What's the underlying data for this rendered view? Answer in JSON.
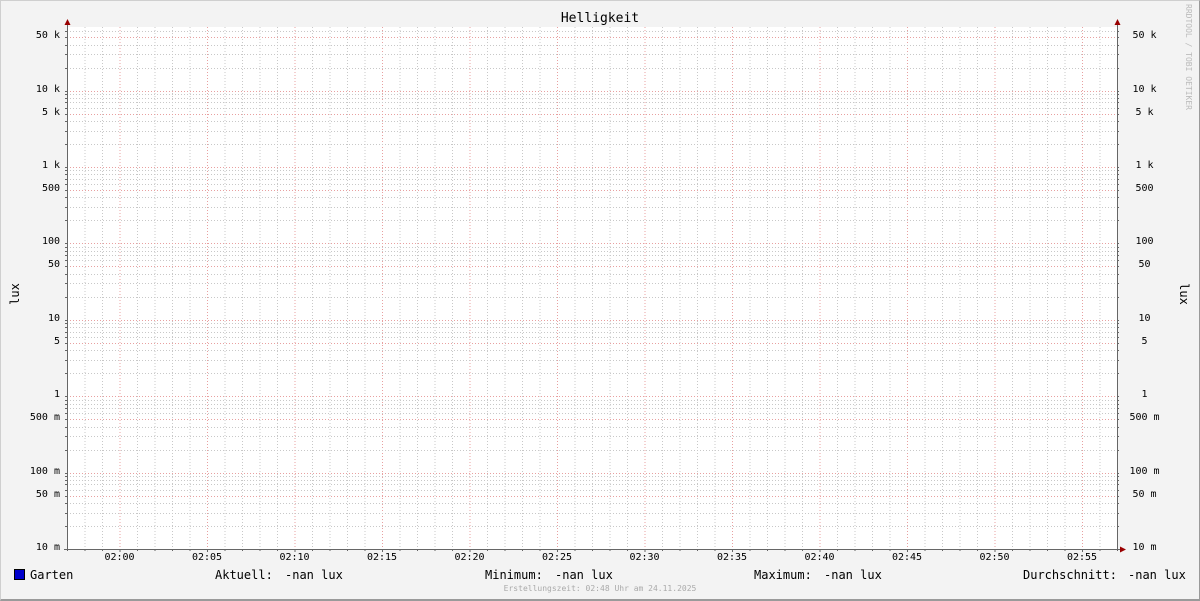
{
  "chart_data": {
    "type": "line",
    "title": "Helligkeit",
    "ylabel_left": "lux",
    "ylabel_right": "lux",
    "y_scale": "log",
    "ylim": [
      0.01,
      68000
    ],
    "xlim": [
      "01:57",
      "02:57"
    ],
    "x_ticks": [
      "02:00",
      "02:05",
      "02:10",
      "02:15",
      "02:20",
      "02:25",
      "02:30",
      "02:35",
      "02:40",
      "02:45",
      "02:50",
      "02:55"
    ],
    "y_ticks": [
      {
        "value": 50000,
        "label": "50 k"
      },
      {
        "value": 10000,
        "label": "10 k"
      },
      {
        "value": 5000,
        "label": "5 k"
      },
      {
        "value": 1000,
        "label": "1 k"
      },
      {
        "value": 500,
        "label": "500"
      },
      {
        "value": 100,
        "label": "100"
      },
      {
        "value": 50,
        "label": "50"
      },
      {
        "value": 10,
        "label": "10"
      },
      {
        "value": 5,
        "label": "5"
      },
      {
        "value": 1,
        "label": "1"
      },
      {
        "value": 0.5,
        "label": "500 m"
      },
      {
        "value": 0.1,
        "label": "100 m"
      },
      {
        "value": 0.05,
        "label": "50 m"
      },
      {
        "value": 0.01,
        "label": "10 m"
      }
    ],
    "grid": true,
    "series": [
      {
        "name": "Garten",
        "color": "#0000cc",
        "values": []
      }
    ],
    "legend_placement": "bottom"
  },
  "legend": {
    "series_name": "Garten",
    "aktuell_label": "Aktuell:",
    "aktuell_value": "-nan lux",
    "minimum_label": "Minimum:",
    "minimum_value": "-nan lux",
    "maximum_label": "Maximum:",
    "maximum_value": "-nan lux",
    "avg_label": "Durchschnitt:",
    "avg_value": "-nan lux"
  },
  "footer": "Erstellungszeit: 02:48 Uhr am 24.11.2025",
  "watermark": "RRDTOOL / TOBI OETIKER",
  "colors": {
    "major_grid": "#e8a0a0",
    "minor_grid": "#c8c8c8",
    "axis": "#666666",
    "arrow": "#990000"
  }
}
